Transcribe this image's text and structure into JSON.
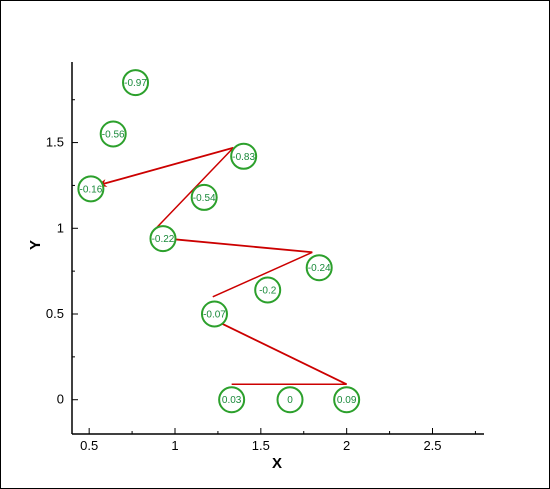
{
  "chart_data": {
    "type": "scatter",
    "xlabel": "X",
    "ylabel": "Y",
    "xlim": [
      0.4,
      2.8
    ],
    "ylim": [
      -0.2,
      1.97
    ],
    "xticks": [
      0.5,
      1,
      1.5,
      2,
      2.5
    ],
    "xtick_labels": [
      "0.5",
      "1",
      "1.5",
      "2",
      "2.5"
    ],
    "yticks": [
      0,
      0.5,
      1,
      1.5
    ],
    "ytick_labels": [
      "0",
      "0.5",
      "1",
      "1.5"
    ],
    "grid": false,
    "points": [
      {
        "x": 1.33,
        "y": 0.0,
        "label": "0.03"
      },
      {
        "x": 1.67,
        "y": 0.0,
        "label": "0"
      },
      {
        "x": 2.0,
        "y": 0.0,
        "label": "0.09"
      },
      {
        "x": 1.23,
        "y": 0.5,
        "label": "-0.07"
      },
      {
        "x": 1.54,
        "y": 0.64,
        "label": "-0.2"
      },
      {
        "x": 1.84,
        "y": 0.77,
        "label": "-0.24"
      },
      {
        "x": 0.93,
        "y": 0.94,
        "label": "-0.22"
      },
      {
        "x": 1.17,
        "y": 1.18,
        "label": "-0.54"
      },
      {
        "x": 1.4,
        "y": 1.42,
        "label": "-0.83"
      },
      {
        "x": 0.51,
        "y": 1.23,
        "label": "-0.16"
      },
      {
        "x": 0.64,
        "y": 1.55,
        "label": "-0.56"
      },
      {
        "x": 0.77,
        "y": 1.85,
        "label": "-0.97"
      }
    ],
    "path_lines": [
      {
        "x1": 1.33,
        "y1": 0.09,
        "x2": 2.0,
        "y2": 0.09
      },
      {
        "x1": 1.22,
        "y1": 0.6,
        "x2": 1.8,
        "y2": 0.86
      },
      {
        "x1": 0.87,
        "y1": 0.98,
        "x2": 1.34,
        "y2": 1.47
      }
    ],
    "arrows": [
      {
        "x1": 2.0,
        "y1": 0.09,
        "x2": 1.22,
        "y2": 0.47
      },
      {
        "x1": 1.8,
        "y1": 0.86,
        "x2": 0.95,
        "y2": 0.94
      },
      {
        "x1": 1.34,
        "y1": 1.47,
        "x2": 0.55,
        "y2": 1.25
      }
    ],
    "colors": {
      "circle": "#2ca02c",
      "label": "#1a8a3a",
      "path": "#cc0000",
      "axis": "#000000"
    }
  }
}
